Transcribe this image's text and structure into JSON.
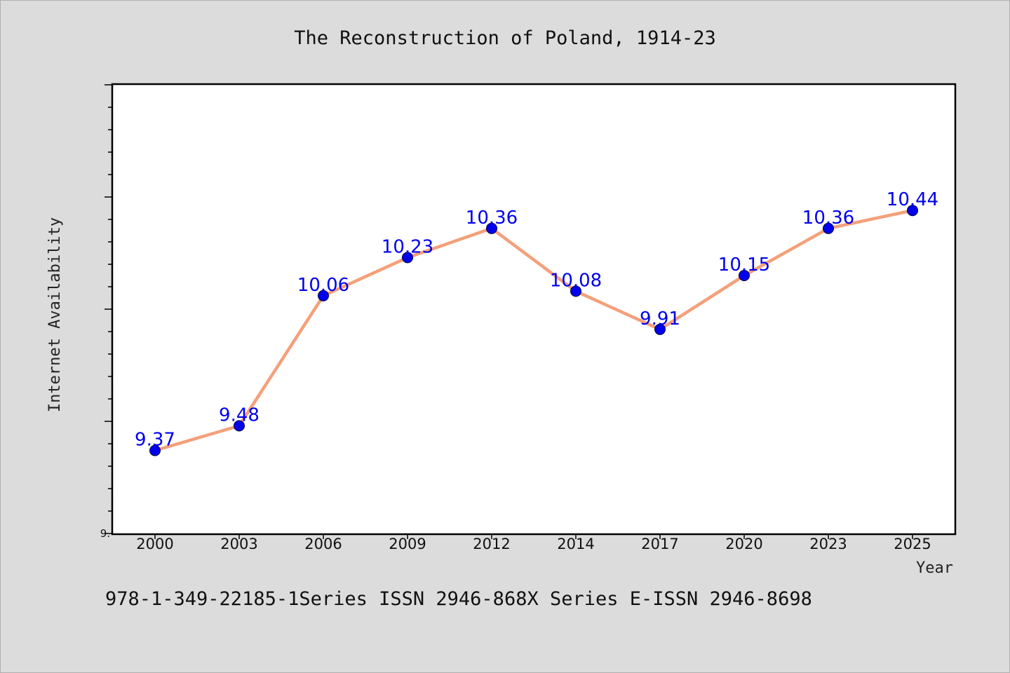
{
  "chart_data": {
    "type": "line",
    "title": "The Reconstruction of Poland, 1914-23",
    "xlabel": "Year",
    "ylabel": "Internet Availability",
    "categories": [
      "2000",
      "2003",
      "2006",
      "2009",
      "2012",
      "2014",
      "2017",
      "2020",
      "2023",
      "2025"
    ],
    "series": [
      {
        "values": [
          9.37,
          9.48,
          10.06,
          10.23,
          10.36,
          10.08,
          9.91,
          10.15,
          10.36,
          10.44
        ]
      }
    ],
    "data_labels": [
      "9.37",
      "9.48",
      "10.06",
      "10.23",
      "10.36",
      "10.08",
      "9.91",
      "10.15",
      "10.36",
      "10.44"
    ],
    "ylim": [
      9.0,
      11.0
    ],
    "y_tick_labels": [
      {
        "value": 9.0,
        "label": "9."
      }
    ],
    "grid": false,
    "legend": "none",
    "colors": {
      "line": "#f4a07a",
      "marker": "#0000ee",
      "marker_edge": "#000033",
      "data_label": "#0000ee",
      "plot_background": "#ffffff",
      "page_background": "#dcdcdc"
    }
  },
  "footer": {
    "text": "978-1-349-22185-1Series ISSN 2946-868X Series E-ISSN 2946-8698"
  }
}
